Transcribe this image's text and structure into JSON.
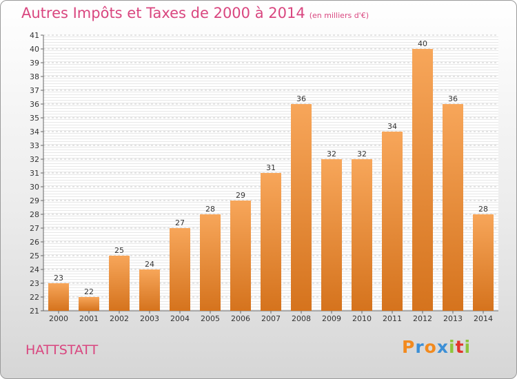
{
  "title": "Autres Impôts et Taxes de 2000 à 2014",
  "unit": "(en milliers d'€)",
  "commune": "HATTSTATT",
  "logo": {
    "text": "Proxiti",
    "letters": [
      "P",
      "r",
      "o",
      "x",
      "i",
      "t",
      "i"
    ],
    "colors": [
      "#f28a1e",
      "#3c8fd6",
      "#f28a1e",
      "#3c8fd6",
      "#8fc43b",
      "#e2342c",
      "#8fc43b"
    ]
  },
  "colors": {
    "bar_top": "#f7a65a",
    "bar_bottom": "#d5731d",
    "title": "#d9467f"
  },
  "chart_data": {
    "type": "bar",
    "categories": [
      "2000",
      "2001",
      "2002",
      "2003",
      "2004",
      "2005",
      "2006",
      "2007",
      "2008",
      "2009",
      "2010",
      "2011",
      "2012",
      "2013",
      "2014"
    ],
    "values": [
      23,
      22,
      25,
      24,
      27,
      28,
      29,
      31,
      36,
      32,
      32,
      34,
      40,
      36,
      28
    ],
    "ylim": [
      21,
      41
    ],
    "yticks": [
      21,
      22,
      23,
      24,
      25,
      26,
      27,
      28,
      29,
      30,
      31,
      32,
      33,
      34,
      35,
      36,
      37,
      38,
      39,
      40,
      41
    ],
    "grid": true,
    "data_labels": true
  }
}
